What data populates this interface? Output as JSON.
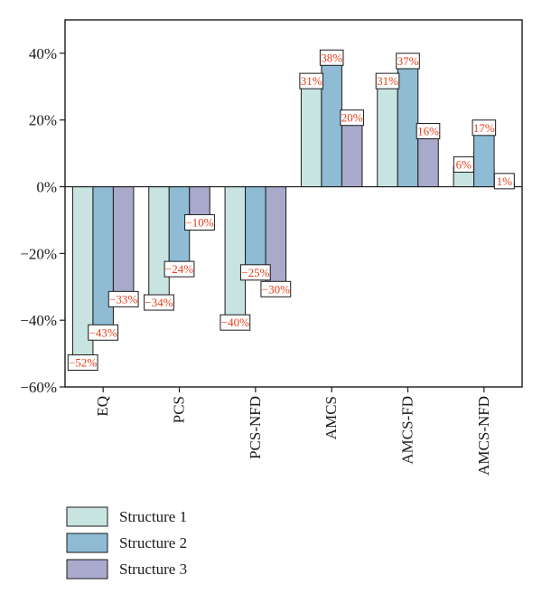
{
  "chart_data": {
    "type": "bar",
    "categories": [
      "EQ",
      "PCS",
      "PCS-NFD",
      "AMCS",
      "AMCS-FD",
      "AMCS-NFD"
    ],
    "series": [
      {
        "name": "Structure 1",
        "values": [
          -52,
          -34,
          -40,
          31,
          31,
          6
        ],
        "labels": [
          "-52%",
          "-34%",
          "-40%",
          "31%",
          "31%",
          "6%"
        ],
        "color": "#c8e4e0"
      },
      {
        "name": "Structure 2",
        "values": [
          -43,
          -24,
          -25,
          38,
          37,
          17
        ],
        "labels": [
          "-43%",
          "-24%",
          "-25%",
          "38%",
          "37%",
          "17%"
        ],
        "color": "#8fbcd4"
      },
      {
        "name": "Structure 3",
        "values": [
          -33,
          -10,
          -30,
          20,
          16,
          1
        ],
        "labels": [
          "-33%",
          "-10%",
          "-30%",
          "20%",
          "16%",
          "1%"
        ],
        "color": "#a9a9cc"
      }
    ],
    "ylim": [
      -60,
      50
    ],
    "yticks": [
      -60,
      -40,
      -20,
      0,
      20,
      40
    ],
    "ytick_labels": [
      "-60%",
      "-40%",
      "-20%",
      "0%",
      "20%",
      "40%"
    ],
    "title": "",
    "xlabel": "",
    "ylabel": "",
    "grid": false,
    "legend_position": "bottom-left",
    "label_color": "#e8401c"
  }
}
